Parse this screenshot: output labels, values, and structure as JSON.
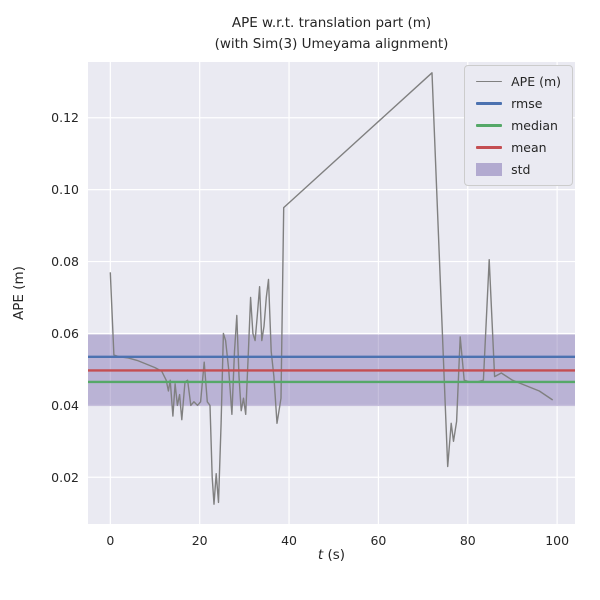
{
  "figure": {
    "title_line1": "APE w.r.t. translation part (m)",
    "title_line2": "(with Sim(3) Umeyama alignment)",
    "ylabel": "APE (m)",
    "xlabel_var": "t",
    "xlabel_unit": " (s)"
  },
  "legend": {
    "items": [
      {
        "label": "APE (m)",
        "color": "#808080",
        "type": "line",
        "lw": 1.4
      },
      {
        "label": "rmse",
        "color": "#4c72b0",
        "type": "line",
        "lw": 2.4
      },
      {
        "label": "median",
        "color": "#55a868",
        "type": "line",
        "lw": 2.4
      },
      {
        "label": "mean",
        "color": "#c44e52",
        "type": "line",
        "lw": 2.4
      },
      {
        "label": "std",
        "color": "#8172b2",
        "type": "patch"
      }
    ]
  },
  "chart_data": {
    "type": "line",
    "title": "APE w.r.t. translation part (m)\n(with Sim(3) Umeyama alignment)",
    "xlabel": "t (s)",
    "ylabel": "APE (m)",
    "xlim": [
      -5,
      104
    ],
    "ylim": [
      0.007,
      0.1355
    ],
    "x_ticks": [
      0,
      20,
      40,
      60,
      80,
      100
    ],
    "y_ticks": [
      0.02,
      0.04,
      0.06,
      0.08,
      0.1,
      0.12
    ],
    "grid": true,
    "legend_position": "upper right",
    "series": [
      {
        "name": "APE (m)",
        "x": [
          0,
          0.8,
          2,
          4,
          6,
          8,
          10,
          11.5,
          12.5,
          13,
          13.4,
          14,
          14.5,
          15,
          15.5,
          16,
          16.7,
          17.3,
          18,
          18.7,
          19.5,
          20.2,
          21,
          21.7,
          22.3,
          22.8,
          23.2,
          23.7,
          24.2,
          24.8,
          25.3,
          25.8,
          26.5,
          27.2,
          27.8,
          28.3,
          28.8,
          29.3,
          29.8,
          30.3,
          30.9,
          31.4,
          31.9,
          32.4,
          32.9,
          33.4,
          33.9,
          34.4,
          34.9,
          35.4,
          36,
          36.6,
          37.3,
          38.2,
          38.8,
          72,
          75.5,
          76.3,
          76.8,
          77.5,
          78.3,
          79.2,
          80.5,
          82,
          83.5,
          84.8,
          86,
          87.5,
          90,
          93,
          96,
          99
        ],
        "values": [
          0.077,
          0.054,
          0.0535,
          0.0532,
          0.0525,
          0.0515,
          0.0505,
          0.0495,
          0.047,
          0.044,
          0.047,
          0.037,
          0.046,
          0.04,
          0.043,
          0.036,
          0.0465,
          0.047,
          0.04,
          0.041,
          0.04,
          0.041,
          0.052,
          0.041,
          0.04,
          0.02,
          0.0125,
          0.021,
          0.013,
          0.035,
          0.06,
          0.058,
          0.05,
          0.0375,
          0.055,
          0.065,
          0.048,
          0.0385,
          0.042,
          0.0375,
          0.055,
          0.07,
          0.06,
          0.058,
          0.065,
          0.073,
          0.058,
          0.062,
          0.07,
          0.075,
          0.055,
          0.048,
          0.035,
          0.042,
          0.095,
          0.1325,
          0.023,
          0.035,
          0.03,
          0.0355,
          0.059,
          0.047,
          0.0465,
          0.0465,
          0.047,
          0.0805,
          0.048,
          0.049,
          0.047,
          0.0455,
          0.044,
          0.0415
        ]
      }
    ],
    "stats": {
      "rmse": 0.0535,
      "median": 0.0465,
      "mean": 0.0497,
      "std_band": [
        0.0398,
        0.0597
      ]
    },
    "colors": {
      "axes_bg": "#eaeaf2",
      "grid": "#ffffff",
      "ape": "#808080",
      "rmse": "#4c72b0",
      "median": "#55a868",
      "mean": "#c44e52",
      "std": "#8172b2"
    }
  }
}
